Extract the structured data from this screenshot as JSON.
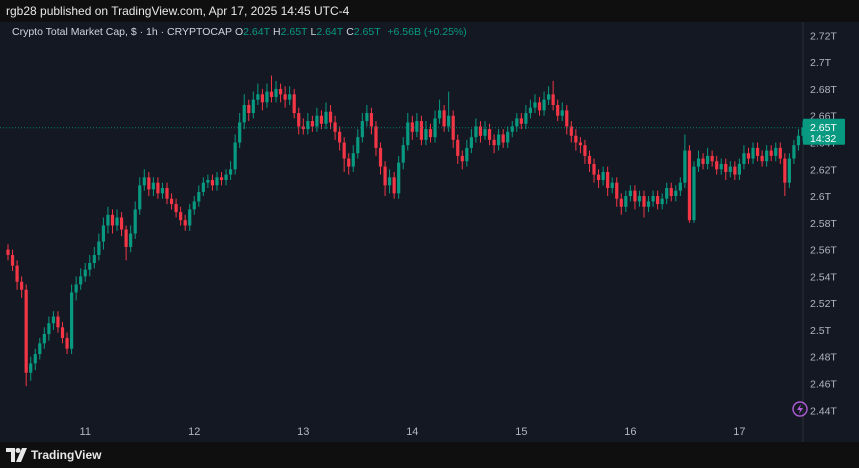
{
  "header": {
    "text": "rgb28 published on TradingView.com, Apr 17, 2025 14:45 UTC-4"
  },
  "chart_data": {
    "type": "candlestick",
    "title": "Crypto Total Market Cap, $ · 1h · CRYPTOCAP",
    "ohlc": [
      {
        "label": "O",
        "value": "2.64T"
      },
      {
        "label": "H",
        "value": "2.65T"
      },
      {
        "label": "L",
        "value": "2.64T"
      },
      {
        "label": "C",
        "value": "2.65T"
      }
    ],
    "change": "+6.56B (+0.25%)",
    "categories": [
      null,
      null,
      null,
      null,
      null,
      null,
      null,
      null,
      null,
      null,
      null,
      null,
      null,
      null,
      null,
      null,
      null,
      "11",
      null,
      null,
      null,
      null,
      null,
      null,
      null,
      null,
      null,
      null,
      null,
      null,
      null,
      null,
      null,
      null,
      null,
      null,
      null,
      null,
      null,
      null,
      null,
      "12",
      null,
      null,
      null,
      null,
      null,
      null,
      null,
      null,
      null,
      null,
      null,
      null,
      null,
      null,
      null,
      null,
      null,
      null,
      null,
      null,
      null,
      null,
      null,
      "13",
      null,
      null,
      null,
      null,
      null,
      null,
      null,
      null,
      null,
      null,
      null,
      null,
      null,
      null,
      null,
      null,
      null,
      null,
      null,
      null,
      null,
      null,
      null,
      "14",
      null,
      null,
      null,
      null,
      null,
      null,
      null,
      null,
      null,
      null,
      null,
      null,
      null,
      null,
      null,
      null,
      null,
      null,
      null,
      null,
      null,
      null,
      null,
      "15",
      null,
      null,
      null,
      null,
      null,
      null,
      null,
      null,
      null,
      null,
      null,
      null,
      null,
      null,
      null,
      null,
      null,
      null,
      null,
      null,
      null,
      null,
      null,
      "16",
      null,
      null,
      null,
      null,
      null,
      null,
      null,
      null,
      null,
      null,
      null,
      null,
      null,
      null,
      null,
      null,
      null,
      null,
      null,
      null,
      null,
      null,
      null,
      "17",
      null,
      null,
      null,
      null,
      null,
      null,
      null,
      null,
      null,
      null,
      null,
      null,
      null,
      null
    ],
    "open": [
      2.56,
      2.556,
      2.548,
      2.536,
      2.53,
      2.468,
      2.475,
      2.482,
      2.49,
      2.497,
      2.505,
      2.51,
      2.502,
      2.494,
      2.486,
      2.528,
      2.534,
      2.54,
      2.545,
      2.55,
      2.556,
      2.566,
      2.578,
      2.586,
      2.578,
      2.584,
      2.575,
      2.562,
      2.572,
      2.59,
      2.608,
      2.614,
      2.605,
      2.61,
      2.602,
      2.606,
      2.598,
      2.594,
      2.588,
      2.582,
      2.578,
      2.59,
      2.596,
      2.603,
      2.61,
      2.612,
      2.608,
      2.614,
      2.612,
      2.616,
      2.62,
      2.64,
      2.655,
      2.668,
      2.662,
      2.672,
      2.676,
      2.67,
      2.678,
      2.674,
      2.68,
      2.676,
      2.672,
      2.676,
      2.662,
      2.652,
      2.65,
      2.656,
      2.652,
      2.66,
      2.654,
      2.663,
      2.655,
      2.648,
      2.64,
      2.628,
      2.622,
      2.632,
      2.644,
      2.656,
      2.662,
      2.652,
      2.636,
      2.622,
      2.608,
      2.614,
      2.602,
      2.625,
      2.638,
      2.655,
      2.648,
      2.656,
      2.642,
      2.65,
      2.644,
      2.658,
      2.664,
      2.652,
      2.66,
      2.642,
      2.63,
      2.626,
      2.636,
      2.644,
      2.652,
      2.645,
      2.65,
      2.642,
      2.638,
      2.646,
      2.64,
      2.648,
      2.652,
      2.658,
      2.654,
      2.662,
      2.666,
      2.67,
      2.664,
      2.672,
      2.676,
      2.668,
      2.66,
      2.664,
      2.652,
      2.645,
      2.64,
      2.638,
      2.63,
      2.624,
      2.616,
      2.612,
      2.618,
      2.606,
      2.61,
      2.598,
      2.592,
      2.6,
      2.604,
      2.596,
      2.6,
      2.592,
      2.596,
      2.6,
      2.594,
      2.598,
      2.606,
      2.6,
      2.604,
      2.61,
      2.634,
      2.582,
      2.622,
      2.628,
      2.624,
      2.63,
      2.626,
      2.62,
      2.624,
      2.618,
      2.622,
      2.616,
      2.624,
      2.632,
      2.628,
      2.636,
      2.63,
      2.626,
      2.634,
      2.63,
      2.636,
      2.628,
      2.61,
      2.628,
      2.638,
      2.645
    ],
    "high": [
      2.564,
      2.56,
      2.552,
      2.54,
      2.534,
      2.48,
      2.486,
      2.494,
      2.502,
      2.51,
      2.514,
      2.514,
      2.506,
      2.498,
      2.534,
      2.54,
      2.546,
      2.55,
      2.556,
      2.562,
      2.572,
      2.584,
      2.592,
      2.59,
      2.59,
      2.588,
      2.578,
      2.578,
      2.596,
      2.614,
      2.62,
      2.618,
      2.614,
      2.614,
      2.61,
      2.61,
      2.602,
      2.598,
      2.592,
      2.586,
      2.594,
      2.6,
      2.608,
      2.614,
      2.616,
      2.616,
      2.618,
      2.618,
      2.62,
      2.626,
      2.646,
      2.662,
      2.676,
      2.672,
      2.678,
      2.684,
      2.68,
      2.684,
      2.69,
      2.686,
      2.684,
      2.682,
      2.682,
      2.68,
      2.666,
      2.658,
      2.662,
      2.66,
      2.666,
      2.664,
      2.67,
      2.668,
      2.66,
      2.652,
      2.644,
      2.632,
      2.638,
      2.65,
      2.662,
      2.668,
      2.666,
      2.656,
      2.64,
      2.626,
      2.62,
      2.618,
      2.63,
      2.644,
      2.662,
      2.66,
      2.662,
      2.66,
      2.656,
      2.654,
      2.664,
      2.672,
      2.668,
      2.678,
      2.664,
      2.646,
      2.634,
      2.642,
      2.65,
      2.658,
      2.656,
      2.656,
      2.654,
      2.646,
      2.65,
      2.65,
      2.652,
      2.656,
      2.662,
      2.662,
      2.668,
      2.672,
      2.676,
      2.674,
      2.678,
      2.682,
      2.686,
      2.672,
      2.67,
      2.668,
      2.656,
      2.65,
      2.644,
      2.642,
      2.634,
      2.628,
      2.62,
      2.622,
      2.622,
      2.614,
      2.614,
      2.602,
      2.604,
      2.608,
      2.608,
      2.604,
      2.604,
      2.6,
      2.604,
      2.604,
      2.602,
      2.61,
      2.61,
      2.608,
      2.614,
      2.646,
      2.638,
      2.626,
      2.634,
      2.632,
      2.636,
      2.634,
      2.63,
      2.628,
      2.628,
      2.626,
      2.626,
      2.628,
      2.638,
      2.636,
      2.64,
      2.64,
      2.634,
      2.638,
      2.638,
      2.64,
      2.64,
      2.632,
      2.632,
      2.642,
      2.65,
      2.656
    ],
    "low": [
      2.552,
      2.544,
      2.53,
      2.524,
      2.458,
      2.462,
      2.47,
      2.478,
      2.486,
      2.492,
      2.5,
      2.498,
      2.49,
      2.482,
      2.482,
      2.522,
      2.53,
      2.536,
      2.54,
      2.546,
      2.552,
      2.56,
      2.572,
      2.572,
      2.574,
      2.57,
      2.552,
      2.558,
      2.568,
      2.586,
      2.604,
      2.6,
      2.6,
      2.598,
      2.598,
      2.594,
      2.59,
      2.584,
      2.578,
      2.574,
      2.574,
      2.586,
      2.592,
      2.6,
      2.606,
      2.604,
      2.604,
      2.608,
      2.608,
      2.612,
      2.616,
      2.636,
      2.65,
      2.656,
      2.658,
      2.668,
      2.664,
      2.666,
      2.67,
      2.67,
      2.67,
      2.666,
      2.668,
      2.658,
      2.646,
      2.646,
      2.646,
      2.648,
      2.648,
      2.65,
      2.65,
      2.65,
      2.642,
      2.634,
      2.618,
      2.616,
      2.618,
      2.628,
      2.64,
      2.652,
      2.646,
      2.63,
      2.616,
      2.6,
      2.602,
      2.598,
      2.598,
      2.62,
      2.634,
      2.642,
      2.644,
      2.638,
      2.638,
      2.64,
      2.64,
      2.654,
      2.648,
      2.648,
      2.636,
      2.624,
      2.62,
      2.622,
      2.632,
      2.64,
      2.64,
      2.642,
      2.638,
      2.632,
      2.634,
      2.636,
      2.636,
      2.644,
      2.648,
      2.65,
      2.65,
      2.658,
      2.662,
      2.66,
      2.66,
      2.668,
      2.664,
      2.656,
      2.656,
      2.646,
      2.64,
      2.634,
      2.632,
      2.624,
      2.618,
      2.61,
      2.606,
      2.608,
      2.6,
      2.602,
      2.592,
      2.586,
      2.588,
      2.596,
      2.59,
      2.592,
      2.584,
      2.588,
      2.592,
      2.59,
      2.59,
      2.594,
      2.596,
      2.596,
      2.6,
      2.606,
      2.58,
      2.58,
      2.618,
      2.62,
      2.62,
      2.622,
      2.616,
      2.616,
      2.612,
      2.614,
      2.612,
      2.612,
      2.62,
      2.624,
      2.624,
      2.626,
      2.622,
      2.622,
      2.626,
      2.626,
      2.624,
      2.6,
      2.606,
      2.624,
      2.634,
      2.641
    ],
    "close": [
      2.556,
      2.548,
      2.536,
      2.53,
      2.468,
      2.475,
      2.482,
      2.49,
      2.497,
      2.505,
      2.51,
      2.502,
      2.494,
      2.486,
      2.528,
      2.534,
      2.54,
      2.545,
      2.55,
      2.556,
      2.566,
      2.578,
      2.586,
      2.578,
      2.584,
      2.575,
      2.562,
      2.572,
      2.59,
      2.608,
      2.614,
      2.605,
      2.61,
      2.602,
      2.606,
      2.598,
      2.594,
      2.588,
      2.582,
      2.578,
      2.59,
      2.596,
      2.603,
      2.61,
      2.612,
      2.608,
      2.614,
      2.612,
      2.616,
      2.62,
      2.64,
      2.655,
      2.668,
      2.662,
      2.672,
      2.676,
      2.67,
      2.678,
      2.674,
      2.68,
      2.676,
      2.672,
      2.676,
      2.662,
      2.652,
      2.65,
      2.656,
      2.652,
      2.66,
      2.654,
      2.663,
      2.655,
      2.648,
      2.64,
      2.628,
      2.622,
      2.632,
      2.644,
      2.656,
      2.662,
      2.652,
      2.636,
      2.622,
      2.608,
      2.614,
      2.602,
      2.625,
      2.638,
      2.655,
      2.648,
      2.656,
      2.642,
      2.65,
      2.644,
      2.658,
      2.664,
      2.652,
      2.66,
      2.642,
      2.63,
      2.626,
      2.636,
      2.644,
      2.652,
      2.645,
      2.65,
      2.642,
      2.638,
      2.646,
      2.64,
      2.648,
      2.652,
      2.658,
      2.654,
      2.662,
      2.666,
      2.67,
      2.664,
      2.672,
      2.676,
      2.668,
      2.66,
      2.664,
      2.652,
      2.645,
      2.64,
      2.638,
      2.63,
      2.624,
      2.616,
      2.612,
      2.618,
      2.606,
      2.61,
      2.598,
      2.592,
      2.6,
      2.604,
      2.596,
      2.6,
      2.592,
      2.596,
      2.6,
      2.594,
      2.598,
      2.606,
      2.6,
      2.604,
      2.61,
      2.634,
      2.582,
      2.622,
      2.628,
      2.624,
      2.63,
      2.626,
      2.62,
      2.624,
      2.618,
      2.622,
      2.616,
      2.624,
      2.632,
      2.628,
      2.636,
      2.63,
      2.626,
      2.634,
      2.63,
      2.636,
      2.628,
      2.61,
      2.628,
      2.638,
      2.645,
      2.651
    ],
    "up_color": "#089981",
    "down_color": "#f23645",
    "ylim": [
      2.429,
      2.73
    ],
    "yticks": [
      {
        "value": 2.44,
        "label": "2.44T"
      },
      {
        "value": 2.46,
        "label": "2.46T"
      },
      {
        "value": 2.48,
        "label": "2.48T"
      },
      {
        "value": 2.5,
        "label": "2.5T"
      },
      {
        "value": 2.52,
        "label": "2.52T"
      },
      {
        "value": 2.54,
        "label": "2.54T"
      },
      {
        "value": 2.56,
        "label": "2.56T"
      },
      {
        "value": 2.58,
        "label": "2.58T"
      },
      {
        "value": 2.6,
        "label": "2.6T"
      },
      {
        "value": 2.62,
        "label": "2.62T"
      },
      {
        "value": 2.64,
        "label": "2.64T"
      },
      {
        "value": 2.66,
        "label": "2.66T"
      },
      {
        "value": 2.68,
        "label": "2.68T"
      },
      {
        "value": 2.7,
        "label": "2.7T"
      },
      {
        "value": 2.72,
        "label": "2.72T"
      }
    ],
    "last_price": {
      "label": "2.65T",
      "countdown": "14:32"
    },
    "grid": false
  },
  "footer": {
    "brand": "TradingView"
  }
}
